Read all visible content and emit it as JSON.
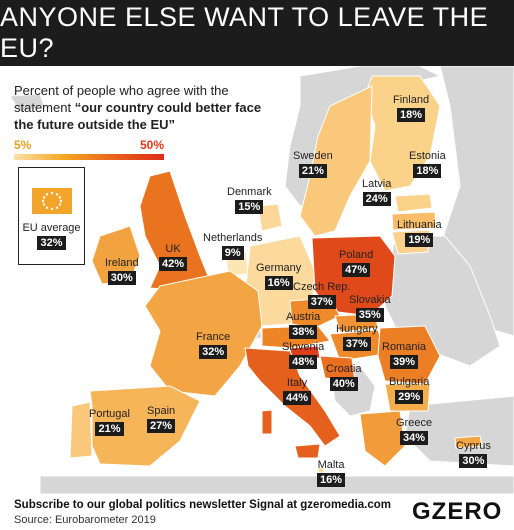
{
  "title": "ANYONE ELSE WANT TO LEAVE THE EU?",
  "subtitle": {
    "line_plain": "Percent of people who agree with the statement",
    "line_bold": "“our country could better face the future outside the EU”"
  },
  "legend": {
    "min_label": "5%",
    "max_label": "50%",
    "min_color": "#fbe1a8",
    "max_color": "#dd2c1a"
  },
  "eu_average": {
    "label": "EU average",
    "value": "32%"
  },
  "countries": [
    {
      "id": "finland",
      "name": "Finland",
      "value": "18%"
    },
    {
      "id": "sweden",
      "name": "Sweden",
      "value": "21%"
    },
    {
      "id": "estonia",
      "name": "Estonia",
      "value": "18%"
    },
    {
      "id": "latvia",
      "name": "Latvia",
      "value": "24%"
    },
    {
      "id": "lithuania",
      "name": "Lithuania",
      "value": "19%"
    },
    {
      "id": "denmark",
      "name": "Denmark",
      "value": "15%"
    },
    {
      "id": "netherlands",
      "name": "Netherlands",
      "value": "9%"
    },
    {
      "id": "ireland",
      "name": "Ireland",
      "value": "30%"
    },
    {
      "id": "uk",
      "name": "UK",
      "value": "42%"
    },
    {
      "id": "germany",
      "name": "Germany",
      "value": "16%"
    },
    {
      "id": "poland",
      "name": "Poland",
      "value": "47%"
    },
    {
      "id": "czech",
      "name": "Czech Rep.",
      "value": "37%"
    },
    {
      "id": "slovakia",
      "name": "Slovakia",
      "value": "35%"
    },
    {
      "id": "austria",
      "name": "Austria",
      "value": "38%"
    },
    {
      "id": "hungary",
      "name": "Hungary",
      "value": "37%"
    },
    {
      "id": "france",
      "name": "France",
      "value": "32%"
    },
    {
      "id": "slovenia",
      "name": "Slovenia",
      "value": "48%"
    },
    {
      "id": "romania",
      "name": "Romania",
      "value": "39%"
    },
    {
      "id": "croatia",
      "name": "Croatia",
      "value": "40%"
    },
    {
      "id": "italy",
      "name": "Italy",
      "value": "44%"
    },
    {
      "id": "bulgaria",
      "name": "Bulgaria",
      "value": "29%"
    },
    {
      "id": "portugal",
      "name": "Portugal",
      "value": "21%"
    },
    {
      "id": "spain",
      "name": "Spain",
      "value": "27%"
    },
    {
      "id": "greece",
      "name": "Greece",
      "value": "34%"
    },
    {
      "id": "cyprus",
      "name": "Cyprus",
      "value": "30%"
    },
    {
      "id": "malta",
      "name": "Malta",
      "value": "16%"
    }
  ],
  "footer": {
    "subscribe": "Subscribe to our global politics newsletter Signal at gzeromedia.com",
    "source": "Source: Eurobarometer 2019",
    "logo": "GZERO"
  },
  "colors": {
    "title_bg": "#1c1c1c",
    "non_eu_land": "#d9d9d9",
    "label_bg": "#1c1c1c"
  }
}
